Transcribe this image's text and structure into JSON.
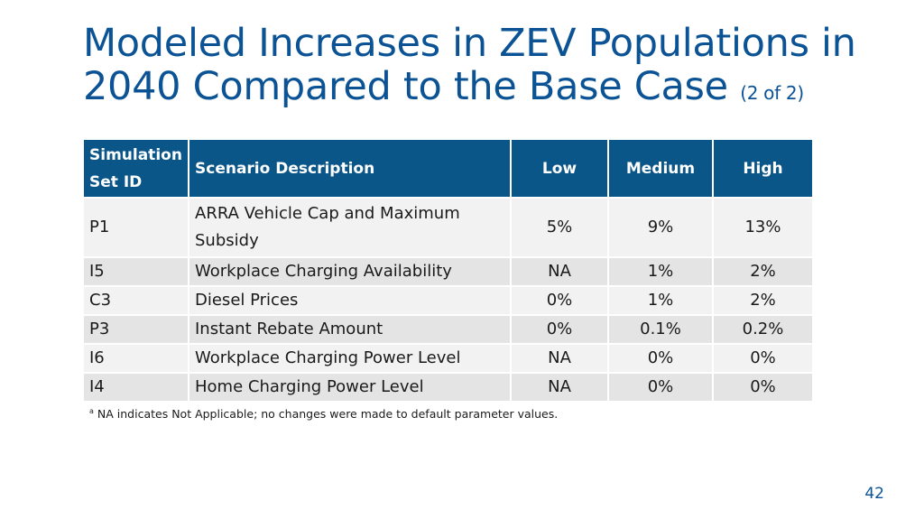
{
  "slide": {
    "title_main": "Modeled Increases in ZEV Populations in 2040 Compared to the Base Case",
    "title_sub": "(2 of 2)",
    "page_number": "42"
  },
  "table": {
    "headers": [
      "Simulation Set ID",
      "Scenario Description",
      "Low",
      "Medium",
      "High"
    ],
    "rows": [
      [
        "P1",
        "ARRA Vehicle Cap and Maximum Subsidy",
        "5%",
        "9%",
        "13%"
      ],
      [
        "I5",
        "Workplace Charging Availability",
        "NA",
        "1%",
        "2%"
      ],
      [
        "C3",
        "Diesel Prices",
        "0%",
        "1%",
        "2%"
      ],
      [
        "P3",
        "Instant Rebate Amount",
        "0%",
        "0.1%",
        "0.2%"
      ],
      [
        "I6",
        "Workplace Charging Power Level",
        "NA",
        "0%",
        "0%"
      ],
      [
        "I4",
        "Home Charging Power Level",
        "NA",
        "0%",
        "0%"
      ]
    ]
  },
  "footnote": {
    "marker": "a",
    "text": "NA indicates Not Applicable; no changes were made to default parameter values."
  }
}
